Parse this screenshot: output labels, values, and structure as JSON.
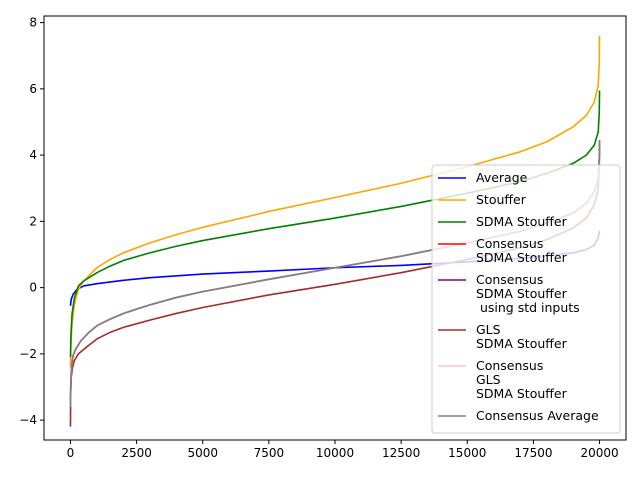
{
  "chart_data": {
    "type": "line",
    "title": "",
    "xlabel": "",
    "ylabel": "",
    "xlim": [
      -1000,
      21000
    ],
    "ylim": [
      -4.6,
      8.2
    ],
    "xticks": [
      0,
      2500,
      5000,
      7500,
      10000,
      12500,
      15000,
      17500,
      20000
    ],
    "yticks": [
      -4,
      -2,
      0,
      2,
      4,
      6,
      8
    ],
    "x_tick_labels": [
      "0",
      "2500",
      "5000",
      "7500",
      "10000",
      "12500",
      "15000",
      "17500",
      "20000"
    ],
    "y_tick_labels": [
      "−4",
      "−2",
      "0",
      "2",
      "4",
      "6",
      "8"
    ],
    "grid": false,
    "legend_position": "lower-right",
    "series": [
      {
        "name": "Average",
        "color": "#0000ff",
        "x": [
          0,
          30,
          100,
          250,
          500,
          1000,
          2000,
          3000,
          5000,
          7500,
          10000,
          12500,
          15000,
          17000,
          18000,
          19000,
          19500,
          19800,
          19950,
          20000
        ],
        "y": [
          -0.55,
          -0.35,
          -0.2,
          -0.05,
          0.05,
          0.12,
          0.22,
          0.3,
          0.41,
          0.5,
          0.6,
          0.67,
          0.78,
          0.88,
          0.96,
          1.05,
          1.15,
          1.28,
          1.5,
          1.72
        ]
      },
      {
        "name": "Stouffer",
        "color": "#ffa500",
        "x": [
          0,
          20,
          60,
          150,
          300,
          500,
          1000,
          1500,
          2000,
          3000,
          4000,
          5000,
          7500,
          10000,
          12500,
          15000,
          17000,
          18000,
          19000,
          19500,
          19800,
          19950,
          19990,
          20000
        ],
        "y": [
          -2.4,
          -1.7,
          -1.1,
          -0.5,
          -0.05,
          0.2,
          0.6,
          0.85,
          1.05,
          1.35,
          1.6,
          1.82,
          2.3,
          2.72,
          3.15,
          3.65,
          4.1,
          4.4,
          4.85,
          5.2,
          5.6,
          6.1,
          6.8,
          7.6
        ]
      },
      {
        "name": "SDMA Stouffer",
        "color": "#008000",
        "x": [
          0,
          20,
          60,
          150,
          300,
          500,
          1000,
          1500,
          2000,
          3000,
          4000,
          5000,
          7500,
          10000,
          12500,
          15000,
          17000,
          18000,
          19000,
          19500,
          19800,
          19950,
          19990,
          20000
        ],
        "y": [
          -2.1,
          -1.4,
          -0.8,
          -0.3,
          0.05,
          0.2,
          0.45,
          0.65,
          0.82,
          1.05,
          1.25,
          1.42,
          1.78,
          2.1,
          2.45,
          2.85,
          3.2,
          3.45,
          3.75,
          4.0,
          4.3,
          4.7,
          5.3,
          5.95
        ]
      },
      {
        "name": "Consensus\nSDMA Stouffer",
        "color": "#ff0000",
        "x": [
          0,
          15,
          40,
          100,
          200,
          400,
          700,
          1000,
          1500,
          2000,
          3000,
          4000,
          5000,
          7500,
          10000,
          12500,
          15000,
          17000,
          18000,
          19000,
          19500,
          19800,
          19950,
          19990,
          20000
        ],
        "y": [
          -3.6,
          -2.8,
          -2.4,
          -2.05,
          -1.85,
          -1.6,
          -1.35,
          -1.15,
          -0.95,
          -0.78,
          -0.52,
          -0.3,
          -0.12,
          0.25,
          0.6,
          0.95,
          1.35,
          1.7,
          1.95,
          2.25,
          2.55,
          2.9,
          3.3,
          3.9,
          4.45
        ]
      },
      {
        "name": "Consensus\nSDMA Stouffer\n using std inputs",
        "color": "#800080",
        "x": [
          0,
          15,
          40,
          100,
          200,
          400,
          700,
          1000,
          1500,
          2000,
          3000,
          4000,
          5000,
          7500,
          10000,
          12500,
          15000,
          17000,
          18000,
          19000,
          19500,
          19800,
          19950,
          19990,
          20000
        ],
        "y": [
          -3.6,
          -2.8,
          -2.4,
          -2.05,
          -1.85,
          -1.6,
          -1.35,
          -1.15,
          -0.95,
          -0.78,
          -0.52,
          -0.3,
          -0.12,
          0.25,
          0.6,
          0.95,
          1.35,
          1.7,
          1.95,
          2.25,
          2.55,
          2.9,
          3.3,
          3.9,
          4.45
        ]
      },
      {
        "name": "GLS\nSDMA Stouffer",
        "color": "#a52a2a",
        "x": [
          0,
          10,
          30,
          80,
          150,
          300,
          600,
          1000,
          1500,
          2000,
          3000,
          4000,
          5000,
          7500,
          10000,
          12500,
          15000,
          17000,
          18000,
          19000,
          19500,
          19800,
          19950,
          19990,
          20000
        ],
        "y": [
          -4.2,
          -3.2,
          -2.7,
          -2.4,
          -2.2,
          -2.0,
          -1.8,
          -1.55,
          -1.35,
          -1.2,
          -0.98,
          -0.78,
          -0.6,
          -0.22,
          0.1,
          0.45,
          0.85,
          1.2,
          1.45,
          1.8,
          2.1,
          2.5,
          3.0,
          3.7,
          4.45
        ]
      },
      {
        "name": "Consensus\nGLS\nSDMA Stouffer",
        "color": "#ffc0cb",
        "x": [
          0,
          15,
          40,
          100,
          200,
          400,
          700,
          1000,
          1500,
          2000,
          3000,
          4000,
          5000,
          7500,
          10000,
          12500,
          15000,
          17000,
          18000,
          19000,
          19500,
          19800,
          19950,
          19990,
          20000
        ],
        "y": [
          -3.6,
          -2.8,
          -2.4,
          -2.05,
          -1.85,
          -1.6,
          -1.35,
          -1.15,
          -0.95,
          -0.78,
          -0.52,
          -0.3,
          -0.12,
          0.25,
          0.6,
          0.95,
          1.35,
          1.7,
          1.95,
          2.25,
          2.55,
          2.9,
          3.3,
          3.9,
          4.45
        ]
      },
      {
        "name": "Consensus Average",
        "color": "#808080",
        "x": [
          0,
          15,
          40,
          100,
          200,
          400,
          700,
          1000,
          1500,
          2000,
          3000,
          4000,
          5000,
          7500,
          10000,
          12500,
          15000,
          17000,
          18000,
          19000,
          19500,
          19800,
          19950,
          19990,
          20000
        ],
        "y": [
          -3.6,
          -2.8,
          -2.4,
          -2.05,
          -1.85,
          -1.6,
          -1.35,
          -1.15,
          -0.95,
          -0.78,
          -0.52,
          -0.3,
          -0.12,
          0.25,
          0.6,
          0.95,
          1.35,
          1.7,
          1.95,
          2.25,
          2.55,
          2.9,
          3.3,
          3.9,
          4.45
        ]
      }
    ]
  }
}
